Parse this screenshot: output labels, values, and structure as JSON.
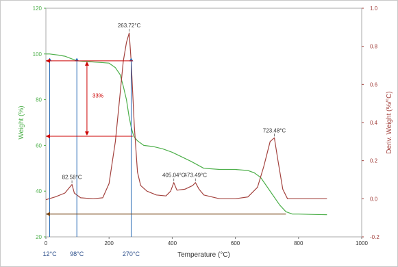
{
  "chart_data": {
    "type": "line",
    "xlabel": "Temperature (°C)",
    "ylabel_left": "Weight (%)",
    "ylabel_right": "Deriv. Weight (%/°C)",
    "xlim": [
      0,
      1000
    ],
    "ylim_left": [
      20,
      120
    ],
    "ylim_right": [
      -0.2,
      1.0
    ],
    "x_ticks": [
      "0",
      "200",
      "400",
      "600",
      "800",
      "1000"
    ],
    "y_left_ticks": [
      "20",
      "40",
      "60",
      "80",
      "100",
      "120"
    ],
    "y_right_ticks": [
      "-0.2",
      "0.0",
      "0.2",
      "0.4",
      "0.6",
      "0.8",
      "1.0"
    ],
    "series": [
      {
        "axis": "left",
        "color": "#4daf4a",
        "x": [
          0,
          12,
          40,
          60,
          98,
          150,
          200,
          220,
          235,
          245,
          255,
          263,
          270,
          278,
          290,
          310,
          340,
          370,
          400,
          430,
          460,
          500,
          550,
          600,
          640,
          660,
          680,
          700,
          720,
          740,
          760,
          780,
          800,
          850,
          890
        ],
        "y": [
          100,
          100,
          99.5,
          99,
          97,
          96.5,
          96,
          94,
          91,
          86,
          80,
          73,
          68,
          64,
          62,
          60,
          59.5,
          58.5,
          57,
          55,
          53,
          50,
          49.5,
          49.5,
          49,
          48,
          46,
          42,
          38,
          34,
          31,
          30,
          30,
          29.8,
          29.7
        ]
      },
      {
        "axis": "right",
        "color": "#a3423e",
        "x": [
          0,
          30,
          60,
          75,
          82.58,
          90,
          110,
          150,
          180,
          200,
          220,
          235,
          245,
          255,
          263.72,
          270,
          280,
          290,
          300,
          320,
          350,
          380,
          395,
          405.04,
          415,
          440,
          465,
          473.49,
          485,
          500,
          550,
          600,
          640,
          670,
          690,
          710,
          723.48,
          735,
          750,
          765,
          800,
          890
        ],
        "y": [
          -0.005,
          0.01,
          0.03,
          0.06,
          0.075,
          0.03,
          0.005,
          0.0,
          0.005,
          0.08,
          0.3,
          0.55,
          0.72,
          0.82,
          0.87,
          0.72,
          0.38,
          0.14,
          0.07,
          0.04,
          0.02,
          0.015,
          0.04,
          0.085,
          0.045,
          0.05,
          0.07,
          0.085,
          0.05,
          0.02,
          0.0,
          0.0,
          0.01,
          0.06,
          0.17,
          0.3,
          0.32,
          0.2,
          0.05,
          0.0,
          0.0,
          0.0
        ]
      }
    ],
    "peak_labels": [
      {
        "x": 263.72,
        "y": 0.87,
        "text": "263.72°C"
      },
      {
        "x": 82.58,
        "y": 0.075,
        "text": "82.58°C"
      },
      {
        "x": 405.04,
        "y": 0.085,
        "text": "405.04°C"
      },
      {
        "x": 473.49,
        "y": 0.085,
        "text": "473.49°C"
      },
      {
        "x": 723.48,
        "y": 0.32,
        "text": "723.48°C"
      }
    ],
    "bottom_labels": [
      {
        "x": 12,
        "text": "12°C"
      },
      {
        "x": 98,
        "text": "98°C"
      },
      {
        "x": 270,
        "text": "270°C"
      }
    ],
    "percent_label": "33%",
    "colors": {
      "left_axis": "#4daf4a",
      "right_axis": "#a3423e",
      "marker": "#cc0000",
      "vline": "#2a6bb5",
      "baseline": "#7a4a1a"
    }
  }
}
